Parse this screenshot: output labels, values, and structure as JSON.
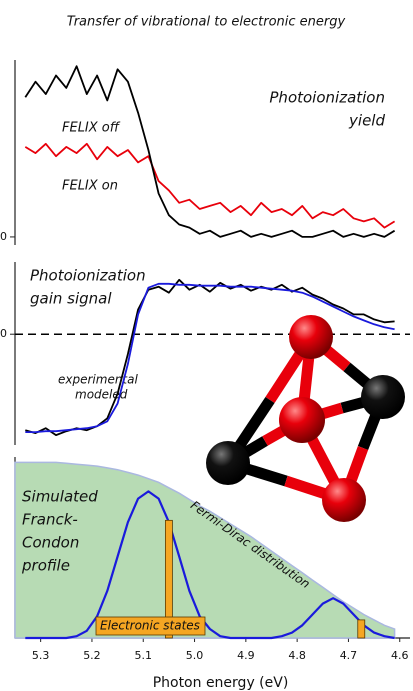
{
  "title": "Transfer of vibrational to electronic energy",
  "chart_data": [
    {
      "type": "line",
      "annotation_lines": [
        "Photoionization",
        "yield"
      ],
      "xlim": [
        5.35,
        4.58
      ],
      "ylim": [
        -0.13,
        2.85
      ],
      "yticks": [
        0
      ],
      "grid": false,
      "x": [
        5.33,
        5.31,
        5.29,
        5.27,
        5.25,
        5.23,
        5.21,
        5.19,
        5.17,
        5.15,
        5.13,
        5.11,
        5.09,
        5.07,
        5.05,
        5.03,
        5.01,
        4.99,
        4.97,
        4.95,
        4.93,
        4.91,
        4.89,
        4.87,
        4.85,
        4.83,
        4.81,
        4.79,
        4.77,
        4.75,
        4.73,
        4.71,
        4.69,
        4.67,
        4.65,
        4.63,
        4.61
      ],
      "series": [
        {
          "name": "FELIX on",
          "color": "#e8000b",
          "values": [
            1.45,
            1.35,
            1.5,
            1.3,
            1.45,
            1.35,
            1.5,
            1.25,
            1.45,
            1.3,
            1.4,
            1.2,
            1.3,
            0.9,
            0.75,
            0.55,
            0.6,
            0.45,
            0.5,
            0.55,
            0.4,
            0.5,
            0.35,
            0.55,
            0.4,
            0.45,
            0.35,
            0.5,
            0.3,
            0.4,
            0.35,
            0.45,
            0.3,
            0.25,
            0.3,
            0.15,
            0.25
          ]
        },
        {
          "name": "FELIX off",
          "color": "#000000",
          "values": [
            2.25,
            2.5,
            2.3,
            2.6,
            2.4,
            2.75,
            2.3,
            2.6,
            2.2,
            2.7,
            2.5,
            2.0,
            1.4,
            0.7,
            0.35,
            0.2,
            0.15,
            0.05,
            0.1,
            0.0,
            0.05,
            0.1,
            0.0,
            0.05,
            0.0,
            0.05,
            0.1,
            0.0,
            0.0,
            0.05,
            0.1,
            0.0,
            0.05,
            0.0,
            0.05,
            0.0,
            0.1
          ]
        }
      ]
    },
    {
      "type": "line",
      "annotation_lines": [
        "Photoionization",
        "gain signal"
      ],
      "xlim": [
        5.35,
        4.58
      ],
      "ylim": [
        -1.12,
        0.73
      ],
      "yticks": [
        0
      ],
      "grid": true,
      "x": [
        5.33,
        5.31,
        5.29,
        5.27,
        5.25,
        5.23,
        5.21,
        5.19,
        5.17,
        5.15,
        5.13,
        5.11,
        5.09,
        5.07,
        5.05,
        5.03,
        5.01,
        4.99,
        4.97,
        4.95,
        4.93,
        4.91,
        4.89,
        4.87,
        4.85,
        4.83,
        4.81,
        4.79,
        4.77,
        4.75,
        4.73,
        4.71,
        4.69,
        4.67,
        4.65,
        4.63,
        4.61
      ],
      "series": [
        {
          "name": "experimental",
          "color": "#000000",
          "values": [
            -0.97,
            -1.0,
            -0.95,
            -1.02,
            -0.98,
            -0.95,
            -0.97,
            -0.93,
            -0.85,
            -0.6,
            -0.2,
            0.25,
            0.45,
            0.48,
            0.42,
            0.55,
            0.45,
            0.5,
            0.43,
            0.52,
            0.46,
            0.5,
            0.44,
            0.48,
            0.45,
            0.5,
            0.43,
            0.47,
            0.4,
            0.36,
            0.3,
            0.26,
            0.2,
            0.2,
            0.15,
            0.12,
            0.13
          ]
        },
        {
          "name": "modeled",
          "color": "#1a1adc",
          "values": [
            -0.99,
            -0.99,
            -0.98,
            -0.98,
            -0.97,
            -0.96,
            -0.95,
            -0.93,
            -0.88,
            -0.7,
            -0.3,
            0.2,
            0.47,
            0.51,
            0.51,
            0.5,
            0.5,
            0.49,
            0.49,
            0.49,
            0.48,
            0.48,
            0.48,
            0.47,
            0.46,
            0.45,
            0.44,
            0.42,
            0.38,
            0.33,
            0.28,
            0.23,
            0.18,
            0.14,
            0.1,
            0.07,
            0.05
          ]
        }
      ]
    },
    {
      "type": "area-line-bar",
      "annotation_lines": [
        "Simulated",
        "Franck-",
        "Condon",
        "profile"
      ],
      "x_label": "Photon energy (eV)",
      "xlim": [
        5.35,
        4.58
      ],
      "ylim": [
        0,
        1
      ],
      "xticks": [
        5.3,
        5.2,
        5.1,
        {
          "value": 5.0,
          "label": "5.0"
        },
        4.9,
        4.8,
        4.7,
        4.6
      ],
      "x": [
        5.33,
        5.31,
        5.29,
        5.27,
        5.25,
        5.23,
        5.21,
        5.19,
        5.17,
        5.15,
        5.13,
        5.11,
        5.09,
        5.07,
        5.05,
        5.03,
        5.01,
        4.99,
        4.97,
        4.95,
        4.93,
        4.91,
        4.89,
        4.87,
        4.85,
        4.83,
        4.81,
        4.79,
        4.77,
        4.75,
        4.73,
        4.71,
        4.69,
        4.67,
        4.65,
        4.63,
        4.61
      ],
      "series": [
        {
          "name": "Fermi-Dirac distribution",
          "kind": "area",
          "color": "#b7dbb4",
          "label_color": "#2a8a2a",
          "values": [
            0.97,
            0.97,
            0.97,
            0.97,
            0.965,
            0.96,
            0.955,
            0.95,
            0.94,
            0.93,
            0.915,
            0.9,
            0.88,
            0.86,
            0.83,
            0.8,
            0.765,
            0.73,
            0.7,
            0.665,
            0.63,
            0.595,
            0.56,
            0.52,
            0.48,
            0.44,
            0.4,
            0.36,
            0.32,
            0.28,
            0.24,
            0.2,
            0.165,
            0.13,
            0.1,
            0.07,
            0.05
          ]
        },
        {
          "kind": "line",
          "color": "#1a1adc",
          "values": [
            0,
            0,
            0,
            0,
            0,
            0.01,
            0.04,
            0.12,
            0.26,
            0.45,
            0.64,
            0.77,
            0.81,
            0.77,
            0.64,
            0.45,
            0.26,
            0.12,
            0.05,
            0.01,
            0,
            0,
            0,
            0,
            0,
            0.01,
            0.03,
            0.07,
            0.13,
            0.19,
            0.22,
            0.19,
            0.13,
            0.07,
            0.03,
            0.01,
            0
          ]
        }
      ],
      "bars": {
        "name": "Electronic states",
        "color": "#f5a623",
        "x": [
          5.05,
          4.675
        ],
        "values": [
          0.65,
          0.1
        ]
      }
    }
  ]
}
